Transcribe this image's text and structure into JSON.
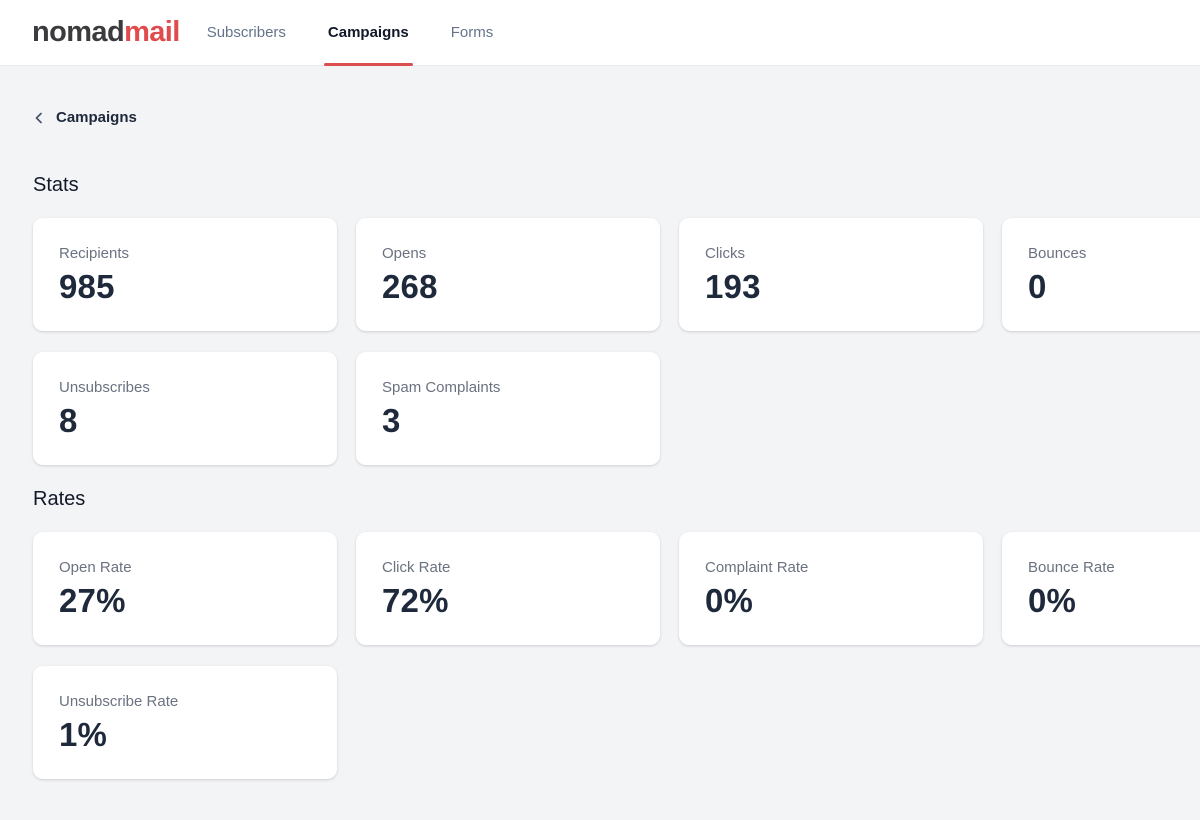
{
  "brand": {
    "name_primary": "nomad",
    "name_accent": "mail"
  },
  "nav": {
    "tabs": [
      {
        "label": "Subscribers",
        "active": false
      },
      {
        "label": "Campaigns",
        "active": true
      },
      {
        "label": "Forms",
        "active": false
      }
    ]
  },
  "breadcrumb": {
    "icon": "chevron-left-icon",
    "label": "Campaigns"
  },
  "sections": [
    {
      "title": "Stats",
      "cards": [
        {
          "label": "Recipients",
          "value": "985"
        },
        {
          "label": "Opens",
          "value": "268"
        },
        {
          "label": "Clicks",
          "value": "193"
        },
        {
          "label": "Bounces",
          "value": "0"
        },
        {
          "label": "Unsubscribes",
          "value": "8"
        },
        {
          "label": "Spam Complaints",
          "value": "3"
        }
      ]
    },
    {
      "title": "Rates",
      "cards": [
        {
          "label": "Open Rate",
          "value": "27%"
        },
        {
          "label": "Click Rate",
          "value": "72%"
        },
        {
          "label": "Complaint Rate",
          "value": "0%"
        },
        {
          "label": "Bounce Rate",
          "value": "0%"
        },
        {
          "label": "Unsubscribe Rate",
          "value": "1%"
        }
      ]
    }
  ],
  "colors": {
    "accent_red": "#d9504f",
    "logo_red": "#e04b4d",
    "logo_dark": "#3b3b3e",
    "background": "#f3f4f6",
    "card_background": "#ffffff",
    "value_text": "#1e293b",
    "label_text": "#6b7280"
  }
}
